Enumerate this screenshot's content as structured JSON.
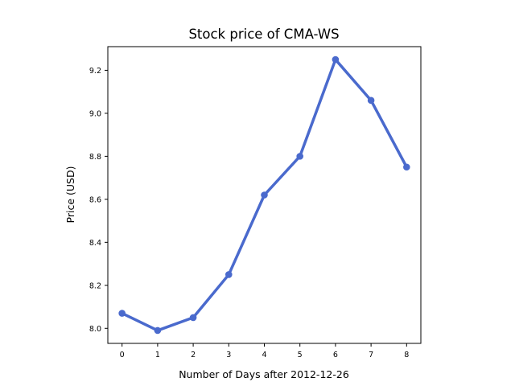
{
  "chart_data": {
    "type": "line",
    "title": "Stock price of CMA-WS",
    "xlabel": "Number of Days after 2012-12-26",
    "ylabel": "Price (USD)",
    "x": [
      0,
      1,
      2,
      3,
      4,
      5,
      6,
      7,
      8
    ],
    "series": [
      {
        "values": [
          8.07,
          7.99,
          8.05,
          8.25,
          8.62,
          8.8,
          9.25,
          9.06,
          8.75
        ],
        "color": "#4a6acd"
      }
    ],
    "xticks": [
      "0",
      "1",
      "2",
      "3",
      "4",
      "5",
      "6",
      "7",
      "8"
    ],
    "yticks": [
      "8.0",
      "8.2",
      "8.4",
      "8.6",
      "8.8",
      "9.0",
      "9.2"
    ],
    "xlim": [
      -0.4,
      8.4
    ],
    "ylim": [
      7.93,
      9.31
    ],
    "grid": false,
    "legend": "none"
  }
}
